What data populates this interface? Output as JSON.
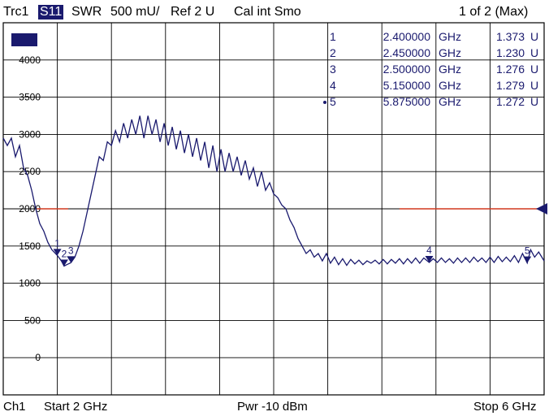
{
  "header": {
    "trace": "Trc1",
    "param": "S11",
    "format": "SWR",
    "scale": "500 mU/",
    "ref": "Ref 2 U",
    "cal": "Cal int Smo",
    "page": "1 of 2 (Max)"
  },
  "footer": {
    "channel": "Ch1",
    "start": "Start  2 GHz",
    "power": "Pwr  -10 dBm",
    "stop": "Stop  6 GHz"
  },
  "trace_badge": "S11",
  "colors": {
    "trace": "#1a1a6e",
    "reference_line": "#d2391f",
    "grid": "#000000",
    "text": "#1a1a6e"
  },
  "markers": [
    {
      "id": "1",
      "freq": "2.400000",
      "unit": "GHz",
      "value": "1.373",
      "vunit": "U",
      "x": 2.4,
      "y": 1373,
      "active": false
    },
    {
      "id": "2",
      "freq": "2.450000",
      "unit": "GHz",
      "value": "1.230",
      "vunit": "U",
      "x": 2.45,
      "y": 1230,
      "active": false
    },
    {
      "id": "3",
      "freq": "2.500000",
      "unit": "GHz",
      "value": "1.276",
      "vunit": "U",
      "x": 2.5,
      "y": 1276,
      "active": false
    },
    {
      "id": "4",
      "freq": "5.150000",
      "unit": "GHz",
      "value": "1.279",
      "vunit": "U",
      "x": 5.15,
      "y": 1279,
      "active": false
    },
    {
      "id": "5",
      "freq": "5.875000",
      "unit": "GHz",
      "value": "1.272",
      "vunit": "U",
      "x": 5.875,
      "y": 1272,
      "active": true
    }
  ],
  "chart_data": {
    "type": "line",
    "ylim": [
      -500,
      4500
    ],
    "xlim": [
      2.0,
      6.0
    ],
    "yticks": [
      0,
      500,
      1000,
      1500,
      2000,
      2500,
      3000,
      3500,
      4000
    ],
    "grid": true,
    "reference_value": 2000,
    "series": [
      {
        "x": [
          2.0,
          2.03,
          2.06,
          2.09,
          2.12,
          2.15,
          2.18,
          2.21,
          2.24,
          2.27,
          2.3,
          2.33,
          2.36,
          2.4,
          2.43,
          2.45,
          2.47,
          2.5,
          2.53,
          2.56,
          2.59,
          2.62,
          2.65,
          2.68,
          2.71,
          2.74,
          2.77,
          2.8,
          2.83,
          2.86,
          2.89,
          2.92,
          2.95,
          2.98,
          3.01,
          3.04,
          3.07,
          3.1,
          3.13,
          3.16,
          3.19,
          3.22,
          3.25,
          3.28,
          3.31,
          3.34,
          3.37,
          3.4,
          3.43,
          3.46,
          3.49,
          3.52,
          3.55,
          3.58,
          3.61,
          3.64,
          3.67,
          3.7,
          3.73,
          3.76,
          3.79,
          3.82,
          3.85,
          3.88,
          3.91,
          3.94,
          3.97,
          4.0,
          4.03,
          4.06,
          4.09,
          4.12,
          4.15,
          4.18,
          4.21,
          4.24,
          4.27,
          4.3,
          4.33,
          4.36,
          4.39,
          4.42,
          4.45,
          4.48,
          4.51,
          4.54,
          4.57,
          4.6,
          4.63,
          4.66,
          4.69,
          4.72,
          4.75,
          4.78,
          4.81,
          4.84,
          4.87,
          4.9,
          4.93,
          4.96,
          4.99,
          5.02,
          5.05,
          5.08,
          5.11,
          5.15,
          5.18,
          5.21,
          5.24,
          5.27,
          5.3,
          5.33,
          5.36,
          5.39,
          5.42,
          5.45,
          5.48,
          5.51,
          5.54,
          5.57,
          5.6,
          5.63,
          5.66,
          5.69,
          5.72,
          5.75,
          5.78,
          5.81,
          5.84,
          5.875,
          5.9,
          5.93,
          5.96,
          6.0
        ],
        "y": [
          2950,
          2850,
          2950,
          2700,
          2850,
          2550,
          2450,
          2250,
          2000,
          1800,
          1700,
          1550,
          1450,
          1373,
          1300,
          1230,
          1250,
          1276,
          1350,
          1500,
          1700,
          1950,
          2200,
          2450,
          2700,
          2650,
          2900,
          2850,
          3050,
          2900,
          3150,
          2950,
          3200,
          3000,
          3250,
          2950,
          3250,
          3000,
          3200,
          2900,
          3150,
          2850,
          3100,
          2800,
          3050,
          2750,
          3000,
          2700,
          2950,
          2650,
          2900,
          2550,
          2850,
          2500,
          2800,
          2500,
          2750,
          2500,
          2700,
          2450,
          2650,
          2400,
          2550,
          2300,
          2500,
          2250,
          2350,
          2200,
          2150,
          2050,
          2000,
          1850,
          1750,
          1600,
          1500,
          1400,
          1450,
          1350,
          1400,
          1300,
          1400,
          1270,
          1350,
          1250,
          1330,
          1240,
          1320,
          1260,
          1310,
          1250,
          1300,
          1270,
          1310,
          1260,
          1320,
          1260,
          1320,
          1270,
          1330,
          1260,
          1330,
          1270,
          1340,
          1270,
          1340,
          1279,
          1330,
          1280,
          1340,
          1280,
          1330,
          1270,
          1340,
          1280,
          1340,
          1280,
          1350,
          1290,
          1340,
          1280,
          1350,
          1280,
          1360,
          1290,
          1350,
          1290,
          1370,
          1280,
          1400,
          1272,
          1450,
          1350,
          1420,
          1300
        ]
      }
    ]
  }
}
